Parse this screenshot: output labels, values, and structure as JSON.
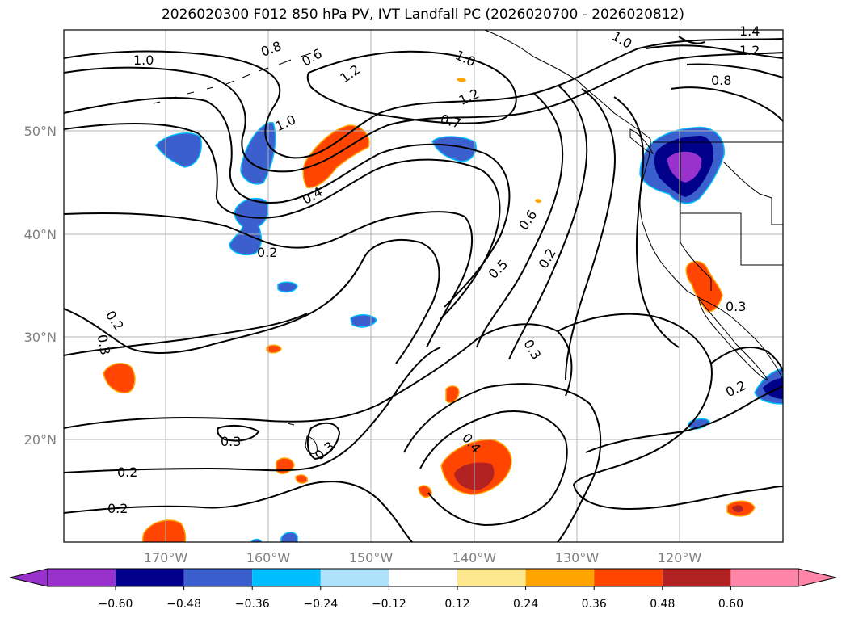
{
  "title": "2026020300 F012 850 hPa PV, IVT Landfall PC (2026020700 - 2026020812)",
  "lat_ticks": [
    "50°N",
    "40°N",
    "30°N",
    "20°N"
  ],
  "lon_ticks": [
    "170°W",
    "160°W",
    "150°W",
    "140°W",
    "130°W",
    "120°W"
  ],
  "contour_labels": [
    "1.0",
    "0.8",
    "0.6",
    "1.2",
    "1.0",
    "1.2",
    "1.0",
    "0.7",
    "1.4",
    "1.2",
    "0.8",
    "1.0",
    "0.4",
    "0.2",
    "0.6",
    "0.5",
    "0.2",
    "0.3",
    "0.2",
    "0.3",
    "0.3",
    "0.2",
    "0.3",
    "0.3",
    "0.4",
    "0.2",
    "0.2"
  ],
  "colorbar": {
    "ticks": [
      "−0.60",
      "−0.48",
      "−0.36",
      "−0.24",
      "−0.12",
      "0.12",
      "0.24",
      "0.36",
      "0.48",
      "0.60"
    ],
    "colors": {
      "under": "#9932cc",
      "bins": [
        "#9932cc",
        "#00008b",
        "#3b5fcd",
        "#00bfff",
        "#aee1fa",
        "#ffffff",
        "#fde88f",
        "#ffa500",
        "#ff4500",
        "#b22222"
      ],
      "over": "#ff85a9"
    }
  }
}
